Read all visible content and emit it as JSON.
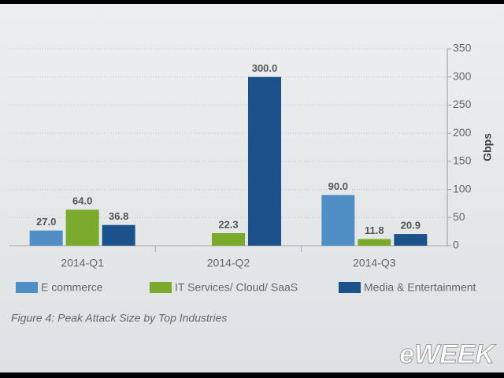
{
  "chart_data": {
    "type": "bar",
    "categories": [
      "2014-Q1",
      "2014-Q2",
      "2014-Q3"
    ],
    "series": [
      {
        "name": "E commerce",
        "color": "#4f8fc6",
        "values": [
          27.0,
          null,
          90.0
        ],
        "value_labels": [
          "27.0",
          null,
          "90.0"
        ]
      },
      {
        "name": "IT Services/ Cloud/ SaaS",
        "color": "#7aaa2c",
        "values": [
          64.0,
          22.3,
          11.8
        ],
        "value_labels": [
          "64.0",
          "22.3",
          "11.8"
        ]
      },
      {
        "name": "Media & Entertainment",
        "color": "#1c528a",
        "values": [
          36.8,
          300.0,
          20.9
        ],
        "value_labels": [
          "36.8",
          "300.0",
          "20.9"
        ]
      }
    ],
    "y_label": "Gbps",
    "ylim": [
      0,
      350
    ],
    "yticks": [
      0,
      50,
      100,
      150,
      200,
      250,
      300,
      350
    ],
    "grid": true,
    "caption": "Figure 4: Peak Attack Size by Top Industries",
    "watermark": "eWEEK"
  }
}
